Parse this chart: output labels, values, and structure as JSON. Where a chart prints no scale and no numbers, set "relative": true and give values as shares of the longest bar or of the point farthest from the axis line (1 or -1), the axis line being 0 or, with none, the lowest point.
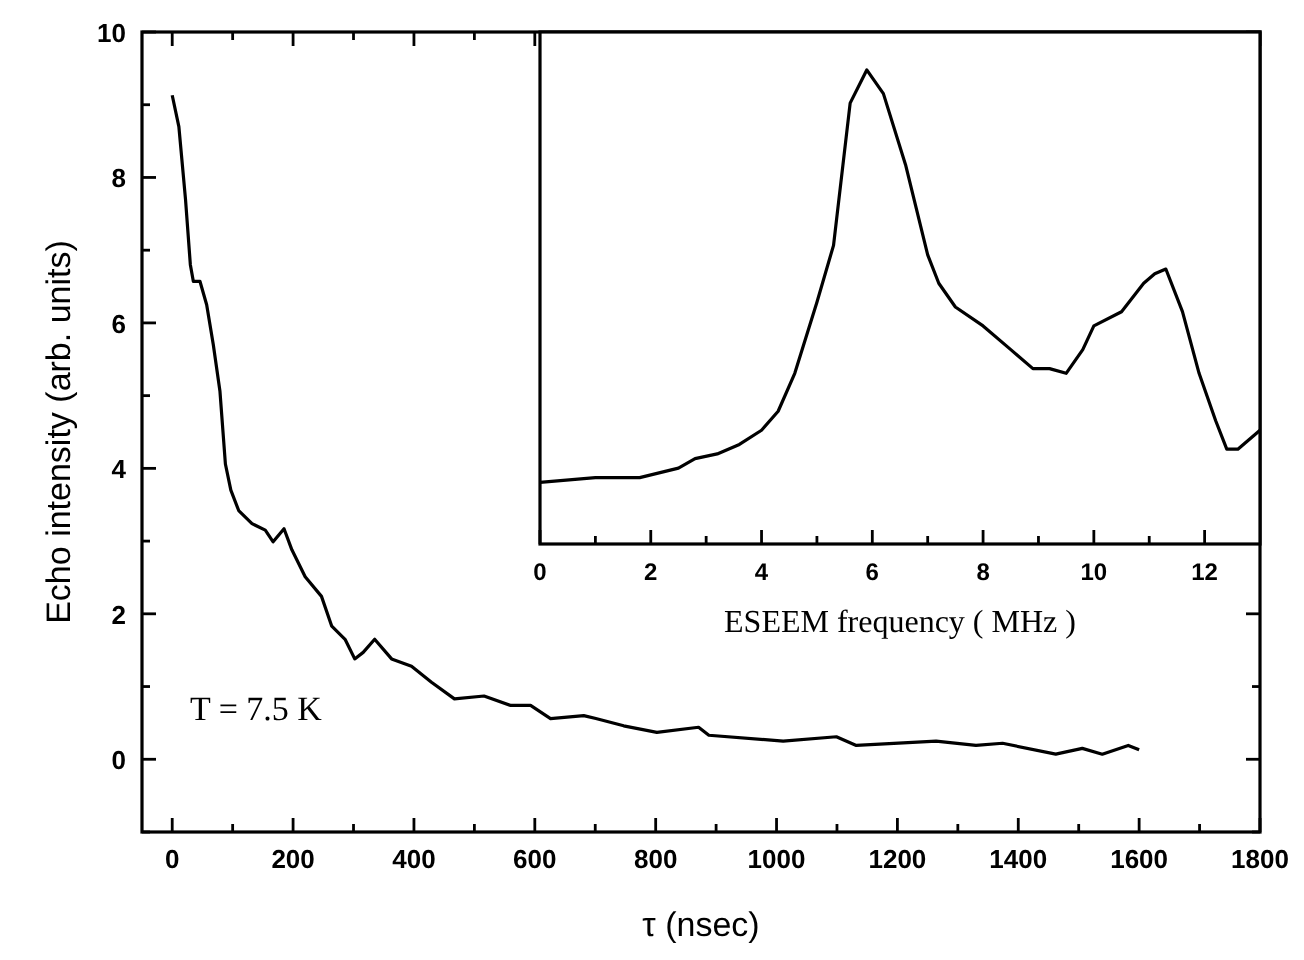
{
  "chart_data": [
    {
      "type": "line",
      "xlabel": "τ (nsec)",
      "ylabel": "Echo intensity (arb. units)",
      "xlim": [
        -50,
        1800
      ],
      "ylim": [
        -1,
        10
      ],
      "xticks": [
        0,
        {
          "value": 100,
          "label": null
        },
        200,
        {
          "value": 300,
          "label": null
        },
        400,
        {
          "value": 500,
          "label": null
        },
        600,
        {
          "value": 700,
          "label": null
        },
        800,
        {
          "value": 900,
          "label": null
        },
        1000,
        {
          "value": 1100,
          "label": null
        },
        1200,
        {
          "value": 1300,
          "label": null
        },
        1400,
        {
          "value": 1500,
          "label": null
        },
        1600,
        {
          "value": 1700,
          "label": null
        },
        1800
      ],
      "yticks": [
        {
          "value": -1,
          "label": null
        },
        0,
        {
          "value": 1,
          "label": null
        },
        2,
        {
          "value": 3,
          "label": null
        },
        4,
        {
          "value": 5,
          "label": null
        },
        6,
        {
          "value": 7,
          "label": null
        },
        8,
        {
          "value": 9,
          "label": null
        },
        10
      ],
      "annotations": [
        "T = 7.5 K"
      ],
      "series": [
        {
          "color": "#000000",
          "x": [
            0,
            11,
            22,
            30,
            35,
            46,
            57,
            68,
            79,
            88,
            97,
            110,
            132,
            154,
            167,
            185,
            198,
            220,
            247,
            264,
            286,
            302,
            316,
            335,
            363,
            396,
            429,
            467,
            516,
            560,
            593,
            626,
            681,
            701,
            747,
            802,
            871,
            888,
            1011,
            1099,
            1132,
            1264,
            1330,
            1374,
            1462,
            1506,
            1539,
            1582,
            1600
          ],
          "values": [
            9.13,
            8.7,
            7.7,
            6.8,
            6.57,
            6.57,
            6.25,
            5.7,
            5.06,
            4.06,
            3.7,
            3.42,
            3.24,
            3.15,
            2.99,
            3.17,
            2.88,
            2.51,
            2.24,
            1.83,
            1.65,
            1.38,
            1.47,
            1.65,
            1.38,
            1.28,
            1.06,
            0.83,
            0.87,
            0.74,
            0.74,
            0.56,
            0.6,
            0.56,
            0.46,
            0.37,
            0.44,
            0.33,
            0.25,
            0.31,
            0.19,
            0.25,
            0.19,
            0.22,
            0.07,
            0.15,
            0.07,
            0.19,
            0.13
          ]
        }
      ]
    },
    {
      "type": "line",
      "relative": true,
      "xlabel": "ESEEM frequency ( MHz )",
      "xlim": [
        0,
        13
      ],
      "xticks": [
        0,
        {
          "value": 1,
          "label": null
        },
        2,
        {
          "value": 3,
          "label": null
        },
        4,
        {
          "value": 5,
          "label": null
        },
        6,
        {
          "value": 7,
          "label": null
        },
        8,
        {
          "value": 9,
          "label": null
        },
        10,
        {
          "value": 11,
          "label": null
        },
        12
      ],
      "series": [
        {
          "color": "#000000",
          "x": [
            0,
            1,
            1.8,
            2.5,
            2.8,
            3.2,
            3.6,
            4.0,
            4.3,
            4.6,
            5.0,
            5.3,
            5.6,
            5.9,
            6.2,
            6.6,
            7.0,
            7.2,
            7.5,
            8.0,
            8.5,
            8.9,
            9.2,
            9.5,
            9.8,
            10.0,
            10.5,
            10.9,
            11.1,
            11.3,
            11.6,
            11.9,
            12.2,
            12.4,
            12.6,
            13.0
          ],
          "values": [
            0.13,
            0.14,
            0.14,
            0.16,
            0.18,
            0.19,
            0.21,
            0.24,
            0.28,
            0.36,
            0.51,
            0.63,
            0.93,
            1,
            0.95,
            0.8,
            0.61,
            0.55,
            0.5,
            0.46,
            0.41,
            0.37,
            0.37,
            0.36,
            0.41,
            0.46,
            0.49,
            0.55,
            0.57,
            0.58,
            0.49,
            0.36,
            0.26,
            0.2,
            0.2,
            0.24
          ]
        }
      ]
    }
  ]
}
